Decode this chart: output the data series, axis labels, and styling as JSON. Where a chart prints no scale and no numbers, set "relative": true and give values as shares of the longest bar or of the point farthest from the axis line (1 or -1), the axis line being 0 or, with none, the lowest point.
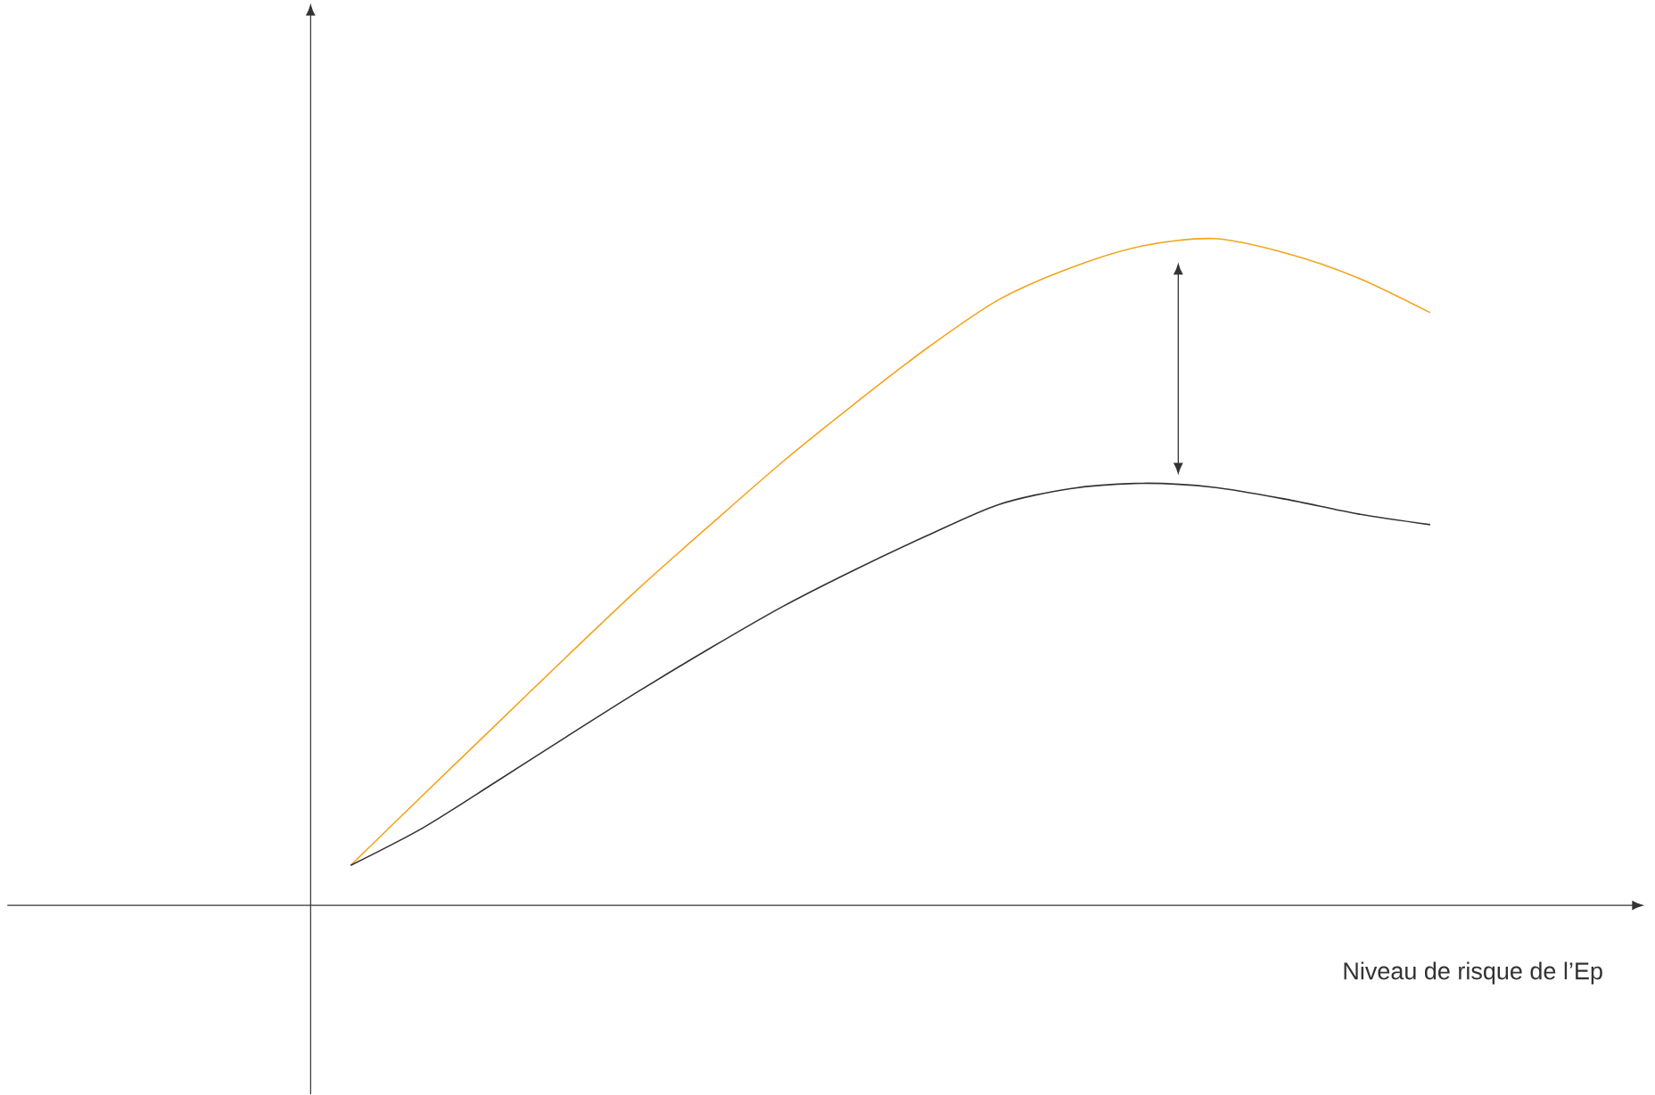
{
  "chart_data": {
    "type": "line",
    "relative": true,
    "xlabel": "Niveau de risque de l’Ep",
    "categories": [
      null,
      null,
      null,
      null,
      null,
      null,
      null,
      null,
      null,
      null,
      null,
      null,
      null,
      null,
      null,
      null
    ],
    "series": [
      {
        "color": "#f5a31a",
        "values": [
          0.06,
          0.165,
          0.269,
          0.373,
          0.475,
          0.571,
          0.665,
          0.752,
          0.835,
          0.908,
          0.956,
          0.989,
          1.0,
          0.978,
          0.941,
          0.889
        ]
      },
      {
        "color": "#333333",
        "values": [
          0.06,
          0.116,
          0.184,
          0.253,
          0.321,
          0.386,
          0.448,
          0.503,
          0.554,
          0.601,
          0.625,
          0.633,
          0.627,
          0.609,
          0.587,
          0.571
        ]
      }
    ]
  }
}
